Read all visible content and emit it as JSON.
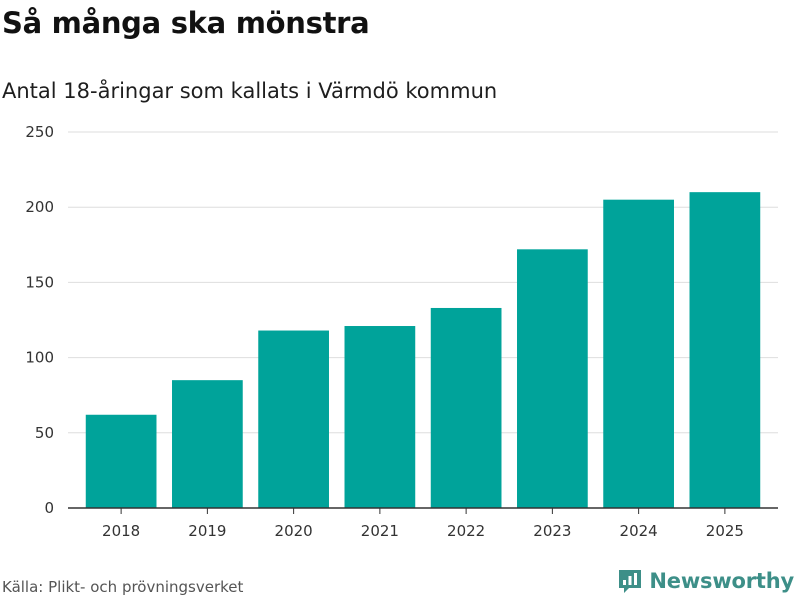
{
  "title": "Så många ska mönstra",
  "subtitle": "Antal 18-åringar som kallats i Värmdö kommun",
  "source": "Källa: Plikt- och prövningsverket",
  "brand": {
    "name": "Newsworthy",
    "icon": "bar-chart-logo-icon",
    "color": "#3d8f88"
  },
  "colors": {
    "bar": "#00a39a",
    "grid": "#dedede",
    "axis": "#333333"
  },
  "chart_data": {
    "type": "bar",
    "title": "Så många ska mönstra",
    "subtitle": "Antal 18-åringar som kallats i Värmdö kommun",
    "xlabel": "",
    "ylabel": "",
    "categories": [
      "2018",
      "2019",
      "2020",
      "2021",
      "2022",
      "2023",
      "2024",
      "2025"
    ],
    "values": [
      62,
      85,
      118,
      121,
      133,
      172,
      205,
      210
    ],
    "ylim": [
      0,
      250
    ],
    "yticks": [
      0,
      50,
      100,
      150,
      200,
      250
    ],
    "grid": true,
    "legend": "none"
  }
}
